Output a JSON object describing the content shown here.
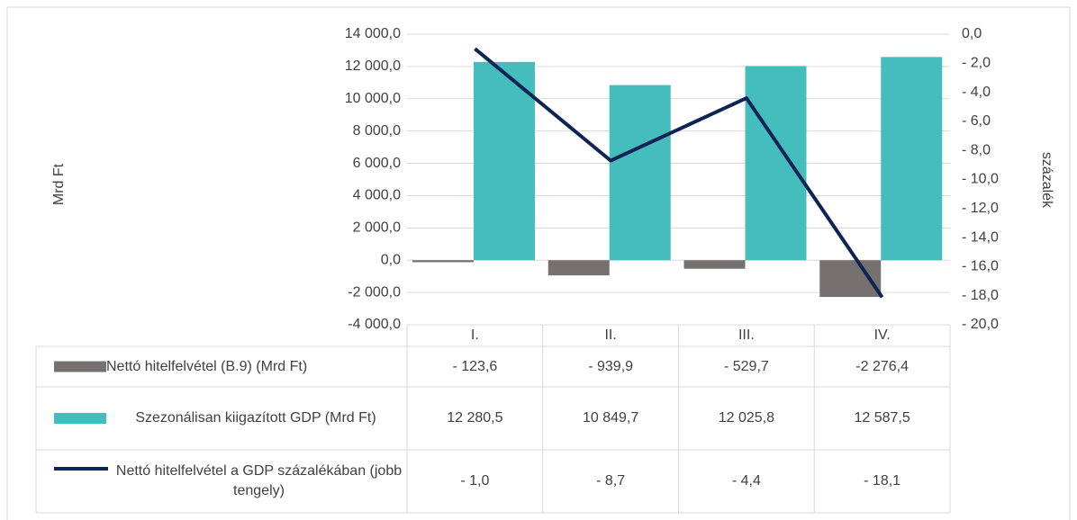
{
  "chart_data": {
    "type": "bar",
    "ylabel": "Mrd Ft",
    "y2label": "százalék",
    "categories": [
      "I.",
      "II.",
      "III.",
      "IV."
    ],
    "series": [
      {
        "name": "Nettó hitelfelvétel (B.9) (Mrd Ft)",
        "color": "#767171",
        "values": [
          -123.6,
          -939.9,
          -529.7,
          -2276.4
        ],
        "value_labels": [
          "- 123,6",
          "- 939,9",
          "- 529,7",
          "-2 276,4"
        ]
      },
      {
        "name": "Szezonálisan kiigazított GDP (Mrd Ft)",
        "color": "#46bdbd",
        "values": [
          12280.5,
          10849.7,
          12025.8,
          12587.5
        ],
        "value_labels": [
          "12 280,5",
          "10 849,7",
          "12 025,8",
          "12 587,5"
        ]
      },
      {
        "name": "Nettó hitelfelvétel a GDP százalékában (jobb tengely)",
        "type": "line",
        "axis": "y2",
        "color": "#0d2455",
        "values": [
          -1.0,
          -8.7,
          -4.4,
          -18.1
        ],
        "value_labels": [
          "- 1,0",
          "- 8,7",
          "- 4,4",
          "- 18,1"
        ]
      }
    ],
    "ylim": [
      -4000,
      14000
    ],
    "yticks": [
      {
        "value": -4000,
        "label": "-4 000,0"
      },
      {
        "value": -2000,
        "label": "-2 000,0"
      },
      {
        "value": 0,
        "label": "0,0"
      },
      {
        "value": 2000,
        "label": "2 000,0"
      },
      {
        "value": 4000,
        "label": "4 000,0"
      },
      {
        "value": 6000,
        "label": "6 000,0"
      },
      {
        "value": 8000,
        "label": "8 000,0"
      },
      {
        "value": 10000,
        "label": "10 000,0"
      },
      {
        "value": 12000,
        "label": "12 000,0"
      },
      {
        "value": 14000,
        "label": "14 000,0"
      }
    ],
    "y2lim": [
      -20,
      0
    ],
    "y2ticks": [
      {
        "value": 0,
        "label": "0,0"
      },
      {
        "value": -2,
        "label": "- 2,0"
      },
      {
        "value": -4,
        "label": "- 4,0"
      },
      {
        "value": -6,
        "label": "- 6,0"
      },
      {
        "value": -8,
        "label": "- 8,0"
      },
      {
        "value": -10,
        "label": "- 10,0"
      },
      {
        "value": -12,
        "label": "- 12,0"
      },
      {
        "value": -14,
        "label": "- 14,0"
      },
      {
        "value": -16,
        "label": "- 16,0"
      },
      {
        "value": -18,
        "label": "- 18,0"
      },
      {
        "value": -20,
        "label": "- 20,0"
      }
    ],
    "grid": true
  }
}
